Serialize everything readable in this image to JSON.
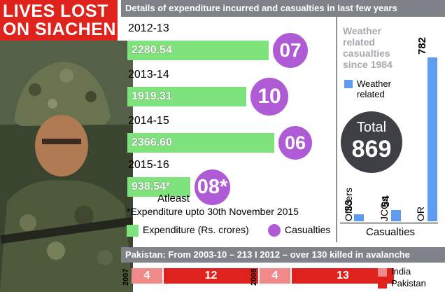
{
  "badge": {
    "line1": "LIVES LOST",
    "line2": "ON SIACHEN"
  },
  "header": {
    "title": "Details of expenditure incurred and casualties in last few years"
  },
  "colors": {
    "expenditure": "#7ee27d",
    "casualties": "#b05bd6",
    "weather": "#5d9cf0",
    "india": "#f08a8a",
    "pakistan": "#e0221c",
    "badge": "#e0221c"
  },
  "chart_data": [
    {
      "type": "bar",
      "categories": [
        "2012-13",
        "2013-14",
        "2014-15",
        "2015-16"
      ],
      "series": [
        {
          "name": "Expenditure (Rs. crores)",
          "values": [
            2280.54,
            1919.31,
            2366.6,
            938.54
          ],
          "labels": [
            "2280.54",
            "1919.31",
            "2366.60",
            "938.54*"
          ]
        },
        {
          "name": "Casualties",
          "values": [
            7,
            10,
            6,
            8
          ],
          "labels": [
            "07",
            "10",
            "06",
            "08*"
          ]
        }
      ],
      "annotation": "Atleast",
      "footnote": "*Expenditure upto 30th November 2015"
    },
    {
      "type": "bar",
      "title": "Weather related casualties since 1984",
      "legend": "Weather related",
      "total_label": "Total",
      "total_value": "869",
      "xlabel": "Casualties",
      "categories": [
        "Officers",
        "JCOs",
        "OR"
      ],
      "values": [
        33,
        54,
        782
      ],
      "ylim": [
        0,
        782
      ]
    },
    {
      "type": "bar",
      "title": "Pakistan: From 2003-10 – 213   I 2012 – over 130 killed in avalanche",
      "categories": [
        "2007",
        "2008"
      ],
      "series": [
        {
          "name": "India",
          "values": [
            4,
            4
          ]
        },
        {
          "name": "Pakistan",
          "values": [
            12,
            13
          ]
        }
      ]
    }
  ]
}
